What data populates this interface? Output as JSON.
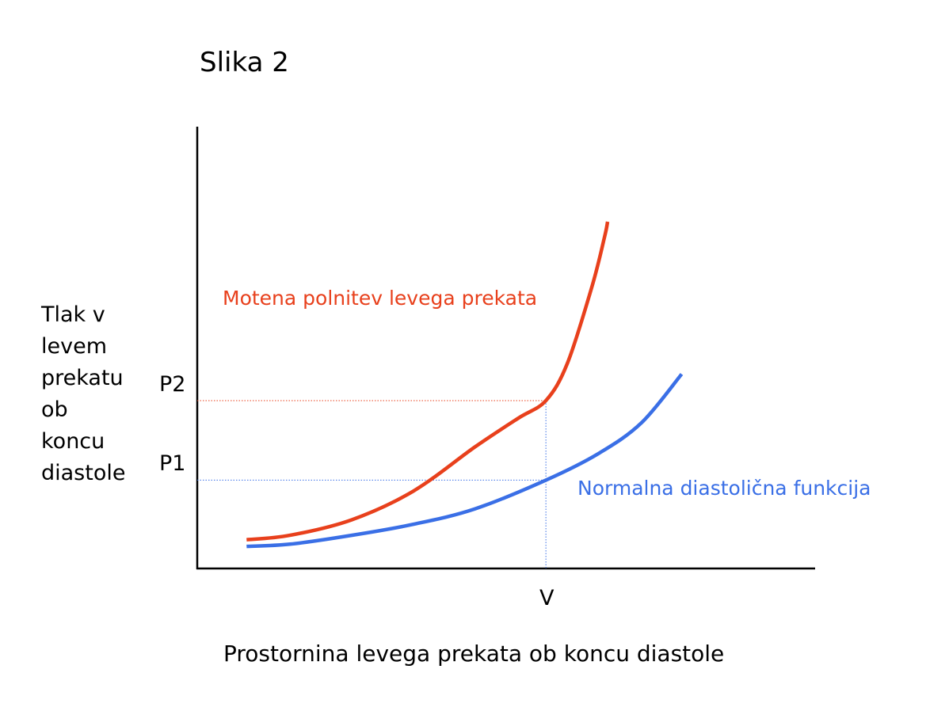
{
  "colors": {
    "impaired": "#e8401c",
    "normal": "#3a6fe6",
    "axis": "#000000"
  },
  "chart_data": {
    "type": "line",
    "title": "Slika 2",
    "xlabel": "Prostornina levega prekata ob koncu diastole",
    "ylabel": "Tlak v\nlevem\nprekatu\nob\nkoncu\ndiastole",
    "grid": false,
    "xlim": [
      0,
      10
    ],
    "ylim": [
      0,
      10
    ],
    "reference": {
      "x_label": "V",
      "x_value": 5.65,
      "y_labels": [
        "P1",
        "P2"
      ],
      "y_values": [
        2.0,
        3.8
      ]
    },
    "series": [
      {
        "key": "impaired",
        "name": "Motena polnitev levega prekata",
        "x": [
          0.8,
          1.5,
          2.5,
          3.5,
          4.5,
          5.2,
          5.65,
          6.0,
          6.4,
          6.6,
          6.65
        ],
        "y": [
          0.65,
          0.75,
          1.1,
          1.75,
          2.75,
          3.4,
          3.8,
          4.65,
          6.4,
          7.5,
          7.85
        ]
      },
      {
        "key": "normal",
        "name": "Normalna diastolična funkcija",
        "x": [
          0.8,
          1.5,
          2.5,
          3.5,
          4.5,
          5.65,
          6.5,
          7.2,
          7.85
        ],
        "y": [
          0.5,
          0.55,
          0.75,
          1.0,
          1.35,
          2.0,
          2.6,
          3.3,
          4.4
        ]
      }
    ]
  }
}
